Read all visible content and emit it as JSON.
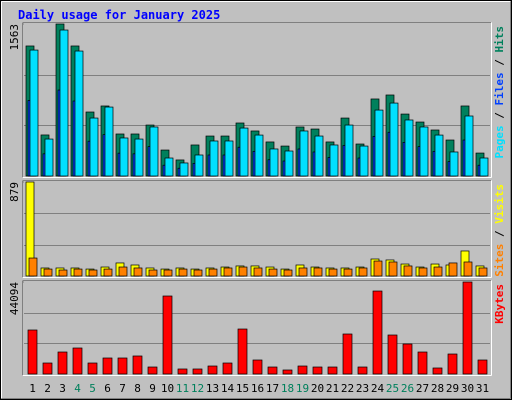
{
  "chart_data": {
    "type": "bar",
    "title": "Daily usage for January 2025",
    "categories": [
      "1",
      "2",
      "3",
      "4",
      "5",
      "6",
      "7",
      "8",
      "9",
      "10",
      "11",
      "12",
      "13",
      "14",
      "15",
      "16",
      "17",
      "18",
      "19",
      "20",
      "21",
      "22",
      "23",
      "24",
      "25",
      "26",
      "27",
      "28",
      "29",
      "30",
      "31"
    ],
    "category_colors": [
      "#000000",
      "#000000",
      "#000000",
      "#00805c",
      "#00805c",
      "#000000",
      "#000000",
      "#000000",
      "#000000",
      "#000000",
      "#00805c",
      "#00805c",
      "#000000",
      "#000000",
      "#000000",
      "#000000",
      "#000000",
      "#00805c",
      "#00805c",
      "#000000",
      "#000000",
      "#000000",
      "#000000",
      "#000000",
      "#00805c",
      "#00805c",
      "#000000",
      "#000000",
      "#000000",
      "#000000",
      "#000000"
    ],
    "legend_separator": " / ",
    "panels": [
      {
        "ylim": [
          0,
          1563
        ],
        "yticks": [
          1563
        ],
        "grid_values": [
          521,
          1042
        ],
        "series": [
          {
            "name": "Hits",
            "color": "#00805c",
            "values": [
              1337,
              422,
              1563,
              1337,
              658,
              720,
              432,
              432,
              524,
              267,
              165,
              319,
              411,
              411,
              545,
              463,
              350,
              308,
              504,
              483,
              350,
              596,
              329,
              792,
              833,
              637,
              555,
              473,
              370,
              720,
              236
            ]
          },
          {
            "name": "Files",
            "color": "#0040ff",
            "values": [
              777,
              228,
              884,
              771,
              358,
              425,
              235,
              228,
              302,
              111,
              80,
              130,
              216,
              216,
              296,
              253,
              167,
              154,
              278,
              247,
              191,
              314,
              185,
              407,
              450,
              346,
              302,
              253,
              148,
              370,
              111
            ]
          },
          {
            "name": "Pages",
            "color": "#00e0ff",
            "values": [
              1295,
              380,
              1501,
              1285,
              596,
              709,
              391,
              380,
              504,
              185,
              134,
              216,
              360,
              360,
              493,
              421,
              278,
              257,
              463,
              411,
              319,
              524,
              308,
              678,
              750,
              576,
              504,
              421,
              247,
              617,
              185
            ]
          }
        ]
      },
      {
        "ylim": [
          0,
          879
        ],
        "yticks": [
          879
        ],
        "grid_values": [
          293,
          586
        ],
        "series": [
          {
            "name": "Visits",
            "color": "#ffff00",
            "values": [
              879,
              75,
              75,
              75,
              65,
              84,
              122,
              103,
              75,
              65,
              75,
              65,
              75,
              84,
              94,
              94,
              84,
              65,
              103,
              84,
              75,
              75,
              84,
              159,
              150,
              112,
              84,
              112,
              103,
              234,
              94
            ]
          },
          {
            "name": "Sites",
            "color": "#ff8000",
            "values": [
              168,
              65,
              56,
              65,
              56,
              65,
              84,
              75,
              56,
              56,
              65,
              56,
              65,
              75,
              84,
              75,
              65,
              56,
              75,
              75,
              65,
              65,
              75,
              140,
              131,
              94,
              75,
              84,
              122,
              131,
              75
            ]
          }
        ]
      },
      {
        "ylim": [
          0,
          44094
        ],
        "yticks": [
          44094
        ],
        "grid_values": [
          14698,
          29396
        ],
        "series": [
          {
            "name": "KBytes",
            "color": "#ff0000",
            "values": [
              21091,
              5270,
              10540,
              12460,
              5270,
              7670,
              7670,
              8630,
              3350,
              37380,
              2400,
              2400,
              3830,
              5270,
              21560,
              6710,
              3350,
              1920,
              3830,
              3350,
              3350,
              19170,
              3350,
              39770,
              18690,
              14380,
              10540,
              2880,
              9580,
              44094,
              6710
            ]
          }
        ]
      }
    ]
  }
}
